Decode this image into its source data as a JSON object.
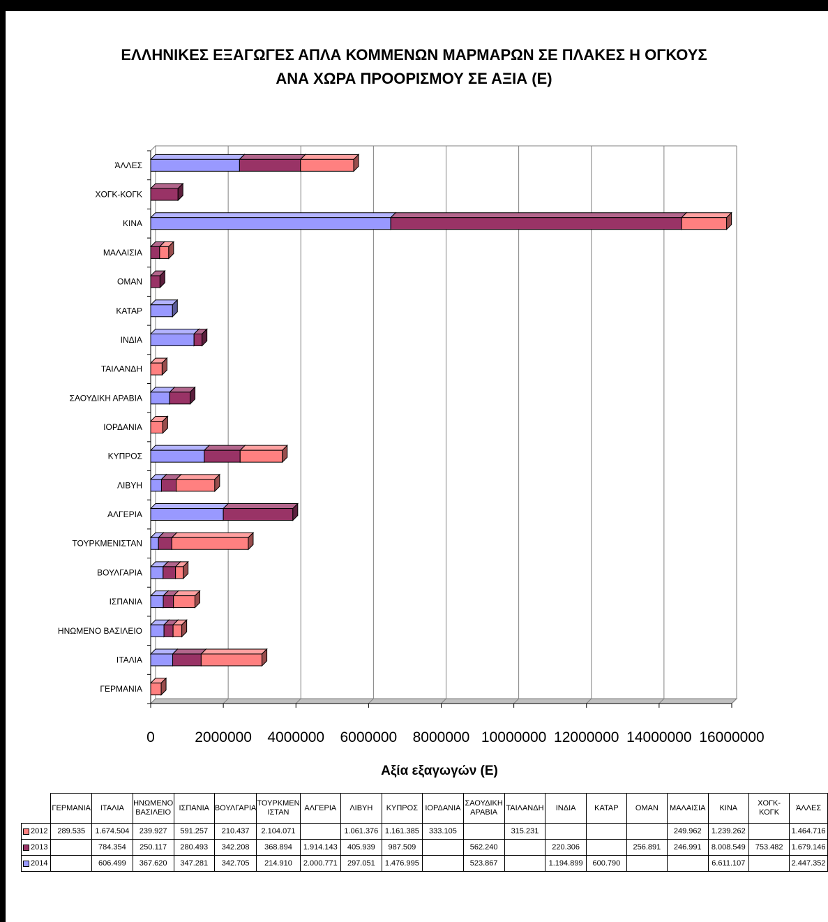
{
  "title_line1": "ΕΛΛΗΝΙΚΕΣ ΕΞΑΓΩΓΕΣ ΑΠΛΑ ΚΟΜΜΕΝΩΝ ΜΑΡΜΑΡΩΝ ΣΕ ΠΛΑΚΕΣ Η ΟΓΚΟΥΣ",
  "title_line2": "ΑΝΑ ΧΩΡΑ ΠΡΟΟΡΙΣΜΟΥ ΣΕ ΑΞΙΑ (Ε)",
  "table": {
    "headers": [
      "ΓΕΡΜΑΝΙΑ",
      "ΙΤΑΛΙΑ",
      "ΗΝΩΜΕΝΟ ΒΑΣΙΛΕΙΟ",
      "ΙΣΠΑΝΙΑ",
      "ΒΟΥΛΓΑΡΙΑ",
      "ΤΟΥΡΚΜΕΝΙΣΤΑΝ",
      "ΑΛΓΕΡΙΑ",
      "ΛΙΒΥΗ",
      "ΚΥΠΡΟΣ",
      "ΙΟΡΔΑΝΙΑ",
      "ΣΑΟΥΔΙΚΗ ΑΡΑΒΙΑ",
      "ΤΑΙΛΑΝΔΗ",
      "ΙΝΔΙΑ",
      "ΚΑΤΑΡ",
      "ΟΜΑΝ",
      "ΜΑΛΑΙΣΙΑ",
      "ΚΙΝΑ",
      "ΧΟΓΚ-ΚΟΓΚ",
      "ΆΛΛΕΣ"
    ],
    "header_display": [
      "ΓΕΡΜΑΝΙΑ",
      "ΙΤΑΛΙΑ",
      "ΗΝΩΜΕΝΟ ΒΑΣΙΛΕΙΟ",
      "ΙΣΠΑΝΙΑ",
      "ΒΟΥΛΓΑΡΙΑ",
      "ΤΟΥΡΚΜΕΝ ΙΣΤΑΝ",
      "ΑΛΓΕΡΙΑ",
      "ΛΙΒΥΗ",
      "ΚΥΠΡΟΣ",
      "ΙΟΡΔΑΝΙΑ",
      "ΣΑΟΥΔΙΚΗ ΑΡΑΒΙΑ",
      "ΤΑΙΛΑΝΔΗ",
      "ΙΝΔΙΑ",
      "ΚΑΤΑΡ",
      "ΟΜΑΝ",
      "ΜΑΛΑΙΣΙΑ",
      "ΚΙΝΑ",
      "ΧΟΓΚ-ΚΟΓΚ",
      "ΆΛΛΕΣ"
    ],
    "rows": [
      {
        "label": "2012",
        "color": "#ff8080",
        "cells": [
          "289.535",
          "1.674.504",
          "239.927",
          "591.257",
          "210.437",
          "2.104.071",
          "",
          "1.061.376",
          "1.161.385",
          "333.105",
          "",
          "315.231",
          "",
          "",
          "",
          "249.962",
          "1.239.262",
          "",
          "1.464.716"
        ]
      },
      {
        "label": "2013",
        "color": "#993366",
        "cells": [
          "",
          "784.354",
          "250.117",
          "280.493",
          "342.208",
          "368.894",
          "1.914.143",
          "405.939",
          "987.509",
          "",
          "562.240",
          "",
          "220.306",
          "",
          "256.891",
          "246.991",
          "8.008.549",
          "753.482",
          "1.679.146"
        ]
      },
      {
        "label": "2014",
        "color": "#9999ff",
        "cells": [
          "",
          "606.499",
          "367.620",
          "347.281",
          "342.705",
          "214.910",
          "2.000.771",
          "297.051",
          "1.476.995",
          "",
          "523.867",
          "",
          "1.194.899",
          "600.790",
          "",
          "",
          "6.611.107",
          "",
          "2.447.352"
        ]
      }
    ]
  },
  "chart_data": {
    "type": "bar",
    "orientation": "horizontal",
    "stacked": true,
    "title": "ΕΛΛΗΝΙΚΕΣ ΕΞΑΓΩΓΕΣ ΑΠΛΑ ΚΟΜΜΕΝΩΝ ΜΑΡΜΑΡΩΝ ΣΕ ΠΛΑΚΕΣ Η ΟΓΚΟΥΣ ΑΝΑ ΧΩΡΑ ΠΡΟΟΡΙΣΜΟΥ ΣΕ ΑΞΙΑ (Ε)",
    "xlabel": "Αξία εξαγωγών (Ε)",
    "ylabel": "",
    "xlim": [
      0,
      16000000
    ],
    "xticks": [
      0,
      2000000,
      4000000,
      6000000,
      8000000,
      10000000,
      12000000,
      14000000,
      16000000
    ],
    "grid": true,
    "categories": [
      "ΓΕΡΜΑΝΙΑ",
      "ΙΤΑΛΙΑ",
      "ΗΝΩΜΕΝΟ ΒΑΣΙΛΕΙΟ",
      "ΙΣΠΑΝΙΑ",
      "ΒΟΥΛΓΑΡΙΑ",
      "ΤΟΥΡΚΜΕΝΙΣΤΑΝ",
      "ΑΛΓΕΡΙΑ",
      "ΛΙΒΥΗ",
      "ΚΥΠΡΟΣ",
      "ΙΟΡΔΑΝΙΑ",
      "ΣΑΟΥΔΙΚΗ ΑΡΑΒΙΑ",
      "ΤΑΙΛΑΝΔΗ",
      "ΙΝΔΙΑ",
      "ΚΑΤΑΡ",
      "ΟΜΑΝ",
      "ΜΑΛΑΙΣΙΑ",
      "ΚΙΝΑ",
      "ΧΟΓΚ-ΚΟΓΚ",
      "ΆΛΛΕΣ"
    ],
    "series": [
      {
        "name": "2014",
        "color": "#9999ff",
        "values": [
          0,
          606499,
          367620,
          347281,
          342705,
          214910,
          2000771,
          297051,
          1476995,
          0,
          523867,
          0,
          1194899,
          600790,
          0,
          0,
          6611107,
          0,
          2447352
        ]
      },
      {
        "name": "2013",
        "color": "#993366",
        "values": [
          0,
          784354,
          250117,
          280493,
          342208,
          368894,
          1914143,
          405939,
          987509,
          0,
          562240,
          0,
          220306,
          0,
          256891,
          246991,
          8008549,
          753482,
          1679146
        ]
      },
      {
        "name": "2012",
        "color": "#ff8080",
        "values": [
          289535,
          1674504,
          239927,
          591257,
          210437,
          2104071,
          0,
          1061376,
          1161385,
          333105,
          0,
          315231,
          0,
          0,
          0,
          249962,
          1239262,
          0,
          1464716
        ]
      }
    ]
  }
}
